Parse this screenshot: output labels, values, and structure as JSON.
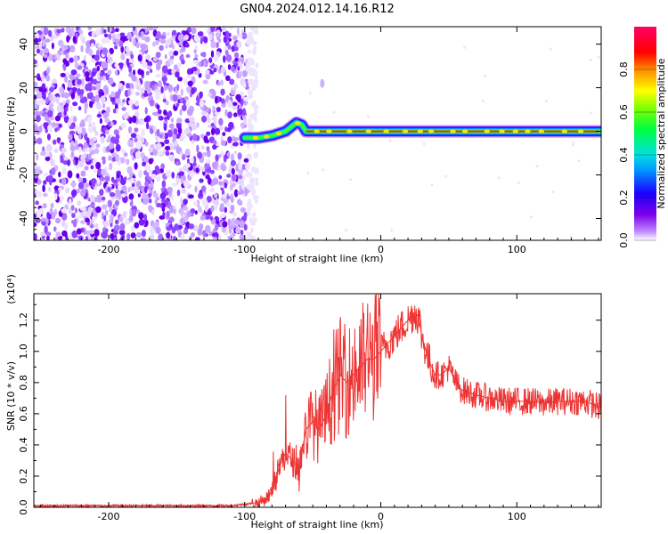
{
  "title": "GN04.2024.012.14.16.R12",
  "chart_data": [
    {
      "type": "heatmap",
      "xlabel": "Height of straight line (km)",
      "ylabel": "Frequency (Hz)",
      "xlim": [
        -255,
        162
      ],
      "ylim": [
        -50,
        48
      ],
      "xticks": [
        -200,
        -100,
        0,
        100
      ],
      "yticks": [
        -40,
        -20,
        0,
        20,
        40
      ],
      "colorbar": {
        "label": "Normalized spectral amplitude",
        "range": [
          0,
          1
        ],
        "ticks": [
          "0.0",
          "0.2",
          "0.4",
          "0.6",
          "0.8"
        ]
      },
      "description_values": {
        "noise_region_x": [
          -255,
          -95
        ],
        "signal_track": {
          "x": [
            -100,
            -90,
            -80,
            -70,
            -62,
            -58,
            -55,
            -40,
            -20,
            0,
            50,
            100,
            162
          ],
          "freq": [
            -3,
            -3,
            -2,
            0,
            4,
            3,
            0,
            0,
            0,
            0,
            0,
            0,
            0
          ]
        }
      }
    },
    {
      "type": "line",
      "xlabel": "Height of straight line (km)",
      "ylabel": "SNR (10 * v/v)",
      "y_multiplier_label": "(x10⁴)",
      "xlim": [
        -255,
        162
      ],
      "ylim": [
        0,
        1.37
      ],
      "xticks": [
        -200,
        -100,
        0,
        100
      ],
      "yticks": [
        "0.0",
        "0.2",
        "0.4",
        "0.6",
        "0.8",
        "1.0",
        "1.2"
      ],
      "ytick_values": [
        0,
        0.2,
        0.4,
        0.6,
        0.8,
        1.0,
        1.2
      ],
      "series": [
        {
          "color": "#ee3333",
          "x": [
            -255,
            -200,
            -150,
            -110,
            -100,
            -90,
            -85,
            -80,
            -75,
            -70,
            -65,
            -60,
            -55,
            -50,
            -45,
            -40,
            -35,
            -30,
            -25,
            -20,
            -15,
            -10,
            -5,
            0,
            5,
            10,
            15,
            20,
            25,
            28,
            30,
            35,
            40,
            45,
            50,
            55,
            60,
            70,
            80,
            90,
            100,
            110,
            120,
            130,
            140,
            150,
            162
          ],
          "y": [
            0.01,
            0.01,
            0.01,
            0.01,
            0.02,
            0.03,
            0.05,
            0.1,
            0.25,
            0.35,
            0.3,
            0.25,
            0.5,
            0.55,
            0.5,
            0.6,
            0.75,
            0.85,
            0.8,
            0.85,
            0.9,
            0.95,
            0.95,
            1.0,
            1.05,
            1.1,
            1.15,
            1.2,
            1.25,
            1.22,
            1.1,
            0.95,
            0.85,
            0.85,
            0.9,
            0.8,
            0.75,
            0.72,
            0.7,
            0.68,
            0.68,
            0.68,
            0.67,
            0.68,
            0.68,
            0.68,
            0.64
          ]
        }
      ]
    }
  ]
}
